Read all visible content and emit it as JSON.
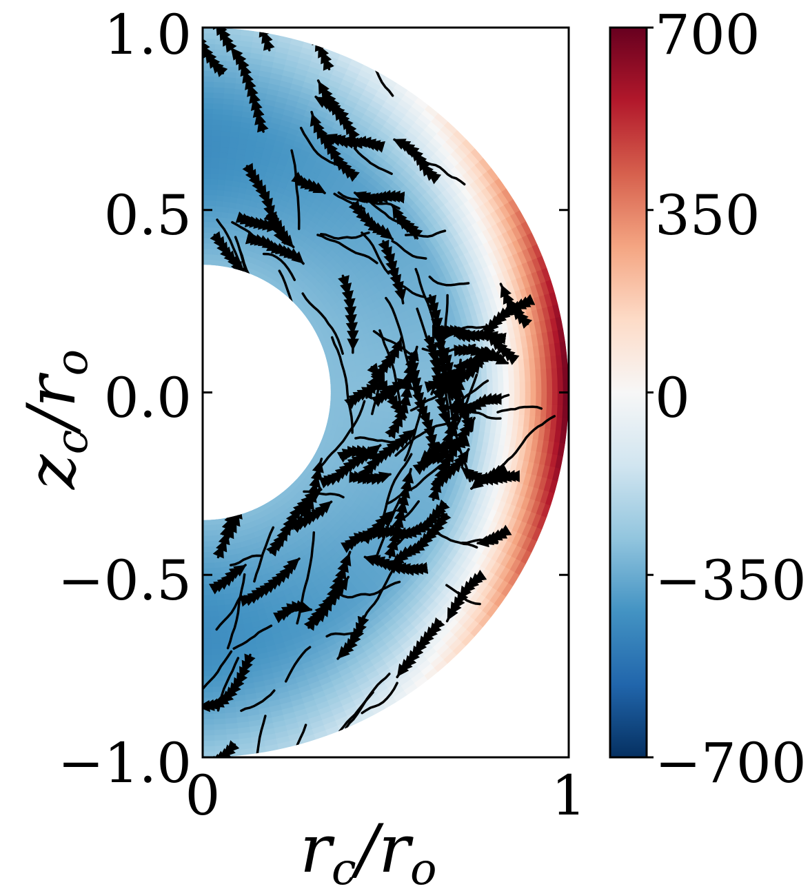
{
  "chart_data": {
    "type": "heatmap",
    "plot_kind": "meridional half-annulus with streamlines",
    "x_axis": {
      "label_main": "r",
      "label_sub": "c",
      "label_tail": "/r",
      "label_tail_sub": "o",
      "range": [
        0,
        1
      ],
      "ticks": [
        0,
        1
      ],
      "tick_labels": [
        "0",
        "1"
      ]
    },
    "y_axis": {
      "label_main": "z",
      "label_sub": "c",
      "label_tail": "/r",
      "label_tail_sub": "o",
      "range": [
        -1.0,
        1.0
      ],
      "ticks": [
        1.0,
        0.5,
        0.0,
        -0.5,
        -1.0
      ],
      "tick_labels": [
        "1.0",
        "0.5",
        "0.0",
        "−0.5",
        "−1.0"
      ]
    },
    "colorbar": {
      "range": [
        -700,
        700
      ],
      "ticks": [
        700,
        350,
        0,
        -350,
        -700
      ],
      "tick_labels": [
        "700",
        "350",
        "0",
        "−350",
        "−700"
      ],
      "colormap": "RdBu_r",
      "colors": [
        "#053061",
        "#2166ac",
        "#4393c3",
        "#92c5de",
        "#d1e5f0",
        "#f7f7f7",
        "#fddbc7",
        "#f4a582",
        "#d6604d",
        "#b2182b",
        "#67001f"
      ]
    },
    "domain": {
      "inner_radius": 0.35,
      "outer_radius": 1.0
    },
    "field_description": {
      "inner_region": -300,
      "outer_equatorial_max": 700,
      "outer_polar": -400
    },
    "streamline_color": "#000000"
  }
}
